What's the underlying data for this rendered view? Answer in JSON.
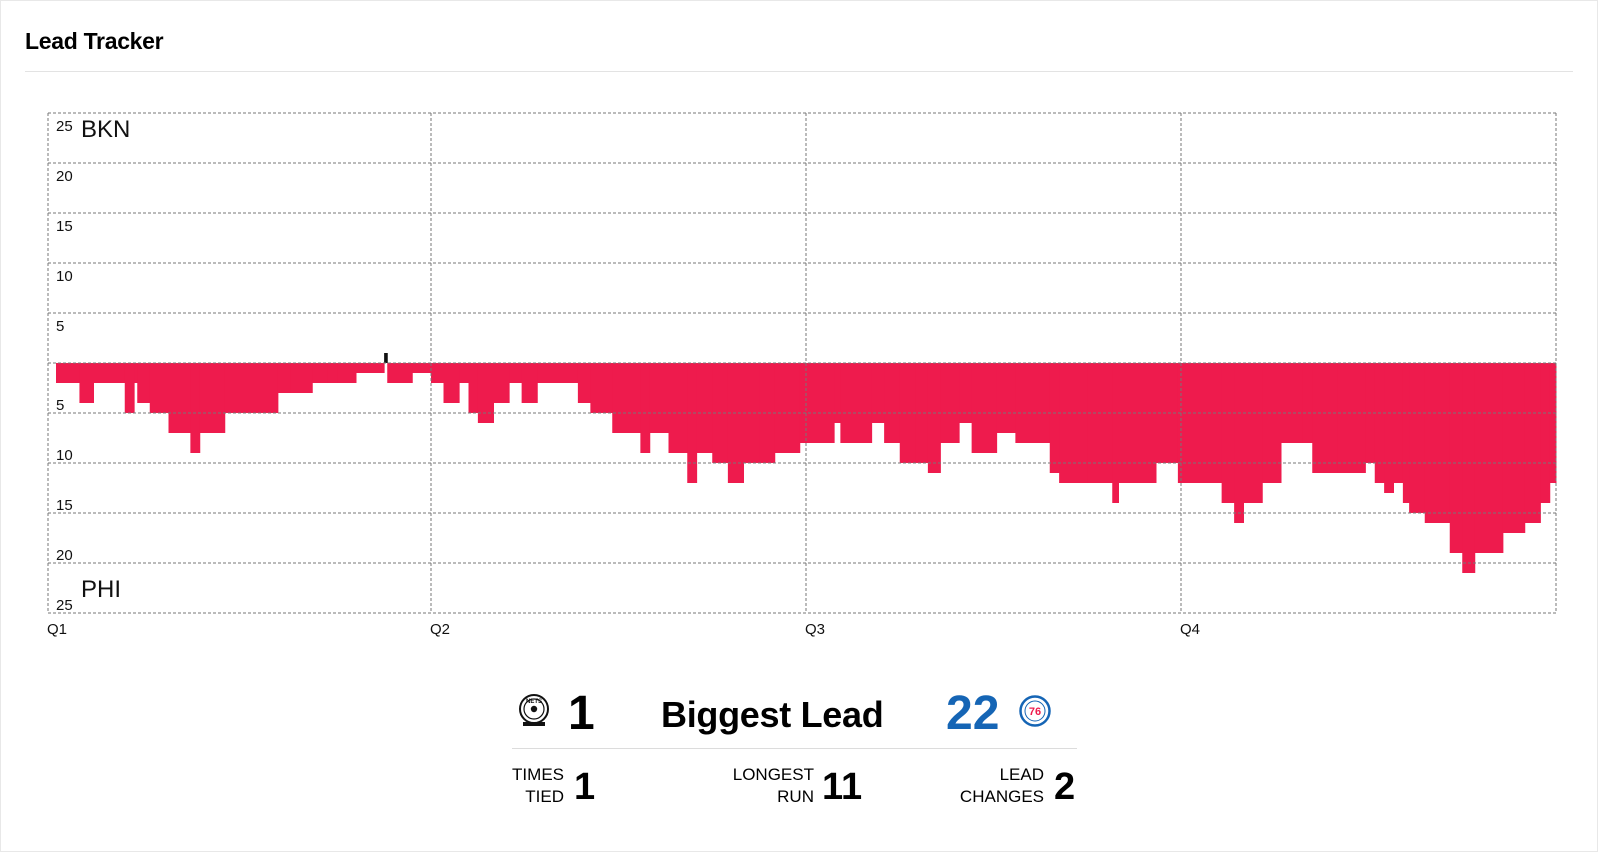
{
  "header": {
    "title": "Lead Tracker"
  },
  "teams": {
    "top": {
      "abbr": "BKN",
      "logo_text": "NETS",
      "logo_sub": "BROOKLYN",
      "logo_icon": "nets-logo-icon"
    },
    "bottom": {
      "abbr": "PHI",
      "logo_text": "76",
      "logo_icon": "sixers-logo-icon"
    }
  },
  "colors": {
    "lead_fill": "#ee1b4d",
    "bkn_fill": "#111111",
    "highlight_value": "#1565b5",
    "grid": "#777777"
  },
  "chart_data": {
    "type": "area",
    "title": "",
    "y_ticks_top": [
      "25",
      "20",
      "15",
      "10",
      "5"
    ],
    "y_ticks_bottom": [
      "5",
      "10",
      "15",
      "20",
      "25"
    ],
    "x_ticks": [
      "Q1",
      "Q2",
      "Q3",
      "Q4"
    ],
    "ylim": [
      -25,
      25
    ],
    "xlim_minutes": [
      0,
      48
    ],
    "grid": true,
    "series": [
      {
        "note_sign": "positive = BKN lead, negative = PHI lead",
        "points": [
          [
            0.0,
            -2
          ],
          [
            0.75,
            -4
          ],
          [
            1.2,
            -2
          ],
          [
            2.0,
            -2
          ],
          [
            2.2,
            -5
          ],
          [
            2.5,
            -2
          ],
          [
            2.6,
            -4
          ],
          [
            3.0,
            -5
          ],
          [
            3.6,
            -7
          ],
          [
            4.3,
            -9
          ],
          [
            4.6,
            -7
          ],
          [
            5.4,
            -5
          ],
          [
            7.1,
            -3
          ],
          [
            7.5,
            -3
          ],
          [
            8.2,
            -2
          ],
          [
            8.7,
            -2
          ],
          [
            9.0,
            -2
          ],
          [
            9.6,
            -1
          ],
          [
            10.0,
            -3
          ],
          [
            10.0,
            -1
          ],
          [
            10.5,
            1
          ],
          [
            10.6,
            -2
          ],
          [
            10.8,
            -2
          ],
          [
            11.4,
            -1
          ],
          [
            12.0,
            -2
          ],
          [
            12.1,
            -2
          ],
          [
            12.4,
            -4
          ],
          [
            12.9,
            -2
          ],
          [
            13.2,
            -5
          ],
          [
            13.5,
            -6
          ],
          [
            14.0,
            -4
          ],
          [
            14.5,
            -2
          ],
          [
            14.9,
            -4
          ],
          [
            15.4,
            -2
          ],
          [
            16.4,
            -2
          ],
          [
            16.7,
            -4
          ],
          [
            17.1,
            -5
          ],
          [
            17.8,
            -7
          ],
          [
            18.7,
            -9
          ],
          [
            19.0,
            -7
          ],
          [
            19.6,
            -9
          ],
          [
            20.2,
            -12
          ],
          [
            20.5,
            -9
          ],
          [
            21.0,
            -10
          ],
          [
            21.5,
            -12
          ],
          [
            22.0,
            -10
          ],
          [
            22.5,
            -10
          ],
          [
            23.0,
            -9
          ],
          [
            23.8,
            -8
          ],
          [
            24.0,
            -8
          ],
          [
            24.9,
            -6
          ],
          [
            25.1,
            -8
          ],
          [
            26.1,
            -6
          ],
          [
            26.5,
            -8
          ],
          [
            27.0,
            -10
          ],
          [
            27.5,
            -10
          ],
          [
            27.9,
            -11
          ],
          [
            28.3,
            -8
          ],
          [
            28.9,
            -6
          ],
          [
            29.3,
            -9
          ],
          [
            30.1,
            -7
          ],
          [
            30.7,
            -8
          ],
          [
            31.8,
            -11
          ],
          [
            32.1,
            -12
          ],
          [
            33.0,
            -12
          ],
          [
            33.8,
            -14
          ],
          [
            34.0,
            -12
          ],
          [
            34.8,
            -12
          ],
          [
            35.2,
            -10
          ],
          [
            35.9,
            -12
          ],
          [
            36.8,
            -12
          ],
          [
            37.3,
            -14
          ],
          [
            37.7,
            -16
          ],
          [
            38.0,
            -14
          ],
          [
            38.6,
            -12
          ],
          [
            39.2,
            -8
          ],
          [
            39.9,
            -8
          ],
          [
            40.2,
            -11
          ],
          [
            41.0,
            -11
          ],
          [
            41.9,
            -10
          ],
          [
            42.2,
            -12
          ],
          [
            42.5,
            -13
          ],
          [
            42.8,
            -12
          ],
          [
            43.1,
            -14
          ],
          [
            43.3,
            -15
          ],
          [
            43.8,
            -16
          ],
          [
            44.6,
            -19
          ],
          [
            45.0,
            -21
          ],
          [
            45.4,
            -19
          ],
          [
            46.3,
            -17
          ],
          [
            47.0,
            -16
          ],
          [
            47.5,
            -14
          ],
          [
            47.8,
            -12
          ],
          [
            48.0,
            -11
          ]
        ]
      }
    ]
  },
  "summary": {
    "biggest_lead_label": "Biggest Lead",
    "bkn_biggest_lead": "1",
    "phi_biggest_lead": "22",
    "times_tied_label_1": "TIMES",
    "times_tied_label_2": "TIED",
    "times_tied": "1",
    "longest_run_label_1": "LONGEST",
    "longest_run_label_2": "RUN",
    "longest_run": "11",
    "lead_changes_label_1": "LEAD",
    "lead_changes_label_2": "CHANGES",
    "lead_changes": "2"
  }
}
